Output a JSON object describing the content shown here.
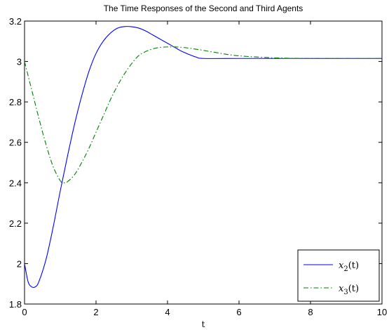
{
  "chart_data": {
    "type": "line",
    "title": "The Time Responses of the Second and Third Agents",
    "xlabel": "t",
    "ylabel": "",
    "xlim": [
      0,
      10
    ],
    "ylim": [
      1.8,
      3.2
    ],
    "xticks": [
      0,
      2,
      4,
      6,
      8,
      10
    ],
    "yticks": [
      1.8,
      2,
      2.2,
      2.4,
      2.6,
      2.8,
      3,
      3.2
    ],
    "xtick_labels": [
      "0",
      "2",
      "4",
      "6",
      "8",
      "10"
    ],
    "ytick_labels": [
      "1.8",
      "2",
      "2.2",
      "2.4",
      "2.6",
      "2.8",
      "3",
      "3.2"
    ],
    "grid": false,
    "legend_position": "bottom-right",
    "series": [
      {
        "name": "x_2(t)",
        "legend_main": "x",
        "legend_sub": "2",
        "legend_suffix": "(t)",
        "color": "#0000ff",
        "style": "solid",
        "x": [
          0,
          0.1,
          0.2,
          0.3,
          0.4,
          0.6,
          0.8,
          1.0,
          1.2,
          1.4,
          1.6,
          1.8,
          2.0,
          2.2,
          2.4,
          2.6,
          2.8,
          3.0,
          3.2,
          3.4,
          3.6,
          3.8,
          4.0,
          4.2,
          4.4,
          4.6,
          4.8,
          5.0,
          6,
          7,
          8,
          9,
          10
        ],
        "y": [
          2.0,
          1.91,
          1.885,
          1.885,
          1.91,
          2.02,
          2.18,
          2.36,
          2.53,
          2.69,
          2.83,
          2.95,
          3.04,
          3.1,
          3.14,
          3.165,
          3.173,
          3.172,
          3.165,
          3.15,
          3.13,
          3.11,
          3.09,
          3.07,
          3.05,
          3.035,
          3.022,
          3.015,
          3.015,
          3.015,
          3.015,
          3.015,
          3.015
        ]
      },
      {
        "name": "x_3(t)",
        "legend_main": "x",
        "legend_sub": "3",
        "legend_suffix": "(t)",
        "color": "#007f00",
        "style": "dashdot",
        "x": [
          0,
          0.2,
          0.4,
          0.6,
          0.8,
          1.0,
          1.1,
          1.2,
          1.4,
          1.6,
          1.8,
          2.0,
          2.2,
          2.4,
          2.6,
          2.8,
          3.0,
          3.2,
          3.4,
          3.6,
          3.8,
          4.0,
          4.2,
          4.4,
          4.6,
          5.0,
          5.5,
          6.0,
          7,
          8,
          9,
          10
        ],
        "y": [
          3.0,
          2.86,
          2.72,
          2.59,
          2.48,
          2.41,
          2.4,
          2.405,
          2.44,
          2.5,
          2.57,
          2.65,
          2.73,
          2.81,
          2.88,
          2.94,
          2.99,
          3.03,
          3.05,
          3.063,
          3.07,
          3.072,
          3.072,
          3.07,
          3.066,
          3.055,
          3.04,
          3.028,
          3.018,
          3.015,
          3.015,
          3.015
        ]
      }
    ]
  }
}
